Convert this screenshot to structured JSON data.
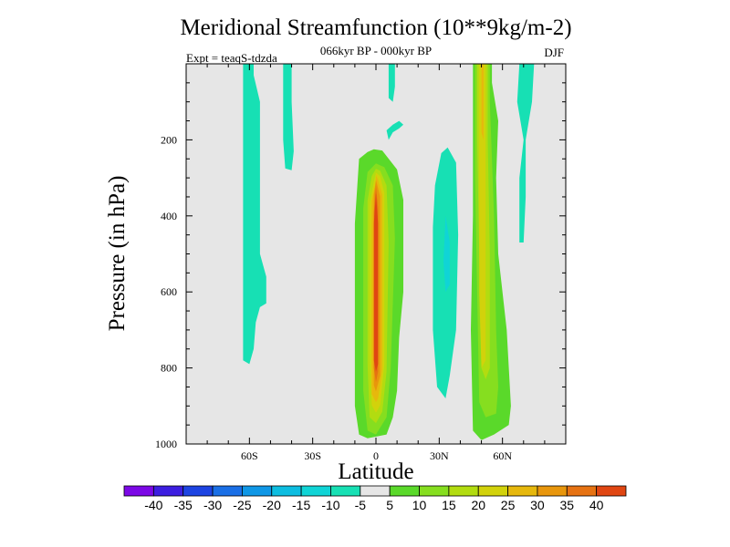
{
  "chart_data": {
    "type": "heatmap",
    "title": "Meridional Streamfunction (10**9kg/m-2)",
    "subtitle": "066kyr BP - 000kyr BP",
    "left_label": "Expt = teaqS-tdzda",
    "right_label": "DJF",
    "xlabel": "Latitude",
    "ylabel": "Pressure (in hPa)",
    "xlim": [
      -90,
      90
    ],
    "ylim": [
      1000,
      0
    ],
    "x_ticks": [
      {
        "value": -60,
        "label": "60S"
      },
      {
        "value": -30,
        "label": "30S"
      },
      {
        "value": 0,
        "label": "0"
      },
      {
        "value": 30,
        "label": "30N"
      },
      {
        "value": 60,
        "label": "60N"
      }
    ],
    "y_ticks": [
      {
        "value": 200,
        "label": "200"
      },
      {
        "value": 400,
        "label": "400"
      },
      {
        "value": 600,
        "label": "600"
      },
      {
        "value": 800,
        "label": "800"
      },
      {
        "value": 1000,
        "label": "1000"
      }
    ],
    "background_color": "#e6e6e6",
    "colorbar": {
      "levels": [
        -40,
        -35,
        -30,
        -25,
        -20,
        -15,
        -10,
        -5,
        5,
        10,
        15,
        20,
        25,
        30,
        35,
        40
      ],
      "labels": [
        "-40",
        "-35",
        "-30",
        "-25",
        "-20",
        "-15",
        "-10",
        "-5",
        "5",
        "10",
        "15",
        "20",
        "25",
        "30",
        "35",
        "40"
      ],
      "colors": [
        "#7c08e6",
        "#3c1ee0",
        "#1d44e2",
        "#1a6fe6",
        "#0f97e6",
        "#0dbde0",
        "#10d4d6",
        "#17e0b4",
        "#e6e6e6",
        "#5ad92a",
        "#86de1f",
        "#b2dc10",
        "#d2d20b",
        "#e6b80d",
        "#e8960c",
        "#e67212",
        "#e04612"
      ]
    },
    "features": [
      {
        "name": "sh-polar-cell",
        "bin": 7,
        "polygon": [
          [
            -63,
            0
          ],
          [
            -58,
            0
          ],
          [
            -58,
            30
          ],
          [
            -55,
            100
          ],
          [
            -55,
            500
          ],
          [
            -52,
            560
          ],
          [
            -52,
            630
          ],
          [
            -55,
            640
          ],
          [
            -57,
            680
          ],
          [
            -58,
            750
          ],
          [
            -60,
            790
          ],
          [
            -63,
            780
          ],
          [
            -63,
            700
          ]
        ]
      },
      {
        "name": "sh-upper-strip",
        "bin": 7,
        "polygon": [
          [
            -44,
            0
          ],
          [
            -40,
            0
          ],
          [
            -40,
            100
          ],
          [
            -39,
            230
          ],
          [
            -40,
            280
          ],
          [
            -43,
            275
          ],
          [
            -44,
            200
          ]
        ]
      },
      {
        "name": "tropical-cell-outer",
        "bin": 9,
        "polygon": [
          [
            -1,
            225
          ],
          [
            3,
            228
          ],
          [
            10,
            278
          ],
          [
            13,
            358
          ],
          [
            13,
            600
          ],
          [
            11,
            720
          ],
          [
            10,
            860
          ],
          [
            8,
            930
          ],
          [
            5,
            975
          ],
          [
            -4,
            985
          ],
          [
            -8,
            975
          ],
          [
            -10,
            900
          ],
          [
            -10,
            420
          ],
          [
            -8,
            250
          ],
          [
            -4,
            232
          ]
        ]
      },
      {
        "name": "tropical-cell-10",
        "bin": 10,
        "polygon": [
          [
            0,
            262
          ],
          [
            4,
            272
          ],
          [
            8,
            320
          ],
          [
            9,
            460
          ],
          [
            7,
            800
          ],
          [
            5,
            930
          ],
          [
            0,
            975
          ],
          [
            -4,
            965
          ],
          [
            -6,
            860
          ],
          [
            -6,
            380
          ],
          [
            -4,
            285
          ]
        ]
      },
      {
        "name": "tropical-cell-15",
        "bin": 11,
        "polygon": [
          [
            0,
            276
          ],
          [
            2,
            281
          ],
          [
            5,
            320
          ],
          [
            6,
            470
          ],
          [
            5,
            810
          ],
          [
            3,
            915
          ],
          [
            0,
            945
          ],
          [
            -3,
            930
          ],
          [
            -4,
            790
          ],
          [
            -4,
            360
          ],
          [
            -2,
            295
          ]
        ]
      },
      {
        "name": "tropical-cell-20",
        "bin": 12,
        "polygon": [
          [
            0,
            286
          ],
          [
            2,
            296
          ],
          [
            4,
            340
          ],
          [
            4,
            790
          ],
          [
            2,
            898
          ],
          [
            0,
            918
          ],
          [
            -2,
            898
          ],
          [
            -3,
            760
          ],
          [
            -3,
            370
          ],
          [
            -1,
            310
          ]
        ]
      },
      {
        "name": "tropical-cell-25",
        "bin": 13,
        "polygon": [
          [
            0,
            293
          ],
          [
            1,
            305
          ],
          [
            3,
            345
          ],
          [
            3,
            805
          ],
          [
            1,
            880
          ],
          [
            0,
            890
          ],
          [
            -2,
            868
          ],
          [
            -2,
            360
          ],
          [
            0,
            311
          ]
        ]
      },
      {
        "name": "tropical-cell-30",
        "bin": 14,
        "polygon": [
          [
            0,
            305
          ],
          [
            2,
            350
          ],
          [
            2,
            820
          ],
          [
            0,
            862
          ],
          [
            -1,
            845
          ],
          [
            -1,
            345
          ]
        ]
      },
      {
        "name": "tropical-cell-35",
        "bin": 15,
        "polygon": [
          [
            0,
            320
          ],
          [
            1,
            380
          ],
          [
            1,
            810
          ],
          [
            0,
            838
          ],
          [
            -1,
            800
          ],
          [
            -1,
            390
          ]
        ]
      },
      {
        "name": "tropical-core",
        "bin": 16,
        "polygon": [
          [
            0,
            340
          ],
          [
            1,
            420
          ],
          [
            1,
            790
          ],
          [
            0,
            810
          ],
          [
            -1,
            780
          ],
          [
            -1,
            420
          ]
        ]
      },
      {
        "name": "equatorial-upper-blob",
        "bin": 7,
        "polygon": [
          [
            6,
            0
          ],
          [
            9,
            0
          ],
          [
            9,
            60
          ],
          [
            8,
            100
          ],
          [
            6,
            90
          ]
        ]
      },
      {
        "name": "equatorial-ring",
        "bin": 7,
        "polygon": [
          [
            5,
            175
          ],
          [
            8,
            160
          ],
          [
            11,
            150
          ],
          [
            13,
            160
          ],
          [
            11,
            170
          ],
          [
            8,
            180
          ],
          [
            6,
            200
          ]
        ]
      },
      {
        "name": "nh-subtropical-cell",
        "bin": 7,
        "polygon": [
          [
            31,
            235
          ],
          [
            34,
            220
          ],
          [
            38,
            260
          ],
          [
            39,
            450
          ],
          [
            38,
            700
          ],
          [
            35,
            820
          ],
          [
            33,
            880
          ],
          [
            29,
            850
          ],
          [
            27,
            700
          ],
          [
            27,
            430
          ],
          [
            28,
            320
          ]
        ]
      },
      {
        "name": "nh-subtropical-core",
        "bin": 6,
        "polygon": [
          [
            33,
            400
          ],
          [
            35,
            470
          ],
          [
            35,
            580
          ],
          [
            33,
            600
          ],
          [
            32,
            520
          ]
        ]
      },
      {
        "name": "nh-midlat-cell-outer",
        "bin": 9,
        "polygon": [
          [
            46,
            0
          ],
          [
            55,
            0
          ],
          [
            55,
            50
          ],
          [
            58,
            150
          ],
          [
            57,
            300
          ],
          [
            58,
            500
          ],
          [
            62,
            700
          ],
          [
            64,
            900
          ],
          [
            63,
            950
          ],
          [
            56,
            975
          ],
          [
            50,
            990
          ],
          [
            46,
            965
          ],
          [
            45,
            700
          ],
          [
            46,
            400
          ],
          [
            46,
            100
          ]
        ]
      },
      {
        "name": "nh-midlat-cell-10",
        "bin": 10,
        "polygon": [
          [
            47,
            0
          ],
          [
            54,
            0
          ],
          [
            54,
            100
          ],
          [
            56,
            400
          ],
          [
            57,
            700
          ],
          [
            58,
            850
          ],
          [
            57,
            920
          ],
          [
            52,
            930
          ],
          [
            49,
            890
          ],
          [
            48,
            600
          ],
          [
            47,
            300
          ]
        ]
      },
      {
        "name": "nh-midlat-cell-15",
        "bin": 11,
        "polygon": [
          [
            48,
            0
          ],
          [
            53,
            0
          ],
          [
            53,
            200
          ],
          [
            54,
            500
          ],
          [
            54,
            800
          ],
          [
            52,
            830
          ],
          [
            50,
            800
          ],
          [
            49,
            500
          ],
          [
            48,
            200
          ]
        ]
      },
      {
        "name": "nh-midlat-cell-20",
        "bin": 12,
        "polygon": [
          [
            49,
            0
          ],
          [
            52,
            0
          ],
          [
            52,
            300
          ],
          [
            52,
            780
          ],
          [
            50,
            800
          ],
          [
            49,
            600
          ]
        ]
      },
      {
        "name": "nh-midlat-core",
        "bin": 13,
        "polygon": [
          [
            50,
            0
          ],
          [
            51,
            0
          ],
          [
            51,
            200
          ],
          [
            50,
            180
          ]
        ]
      },
      {
        "name": "nh-polar-strip",
        "bin": 7,
        "polygon": [
          [
            68,
            0
          ],
          [
            75,
            0
          ],
          [
            74,
            100
          ],
          [
            71,
            200
          ],
          [
            71,
            350
          ],
          [
            70,
            470
          ],
          [
            68,
            470
          ],
          [
            68,
            300
          ],
          [
            70,
            200
          ],
          [
            67,
            100
          ]
        ]
      }
    ]
  }
}
